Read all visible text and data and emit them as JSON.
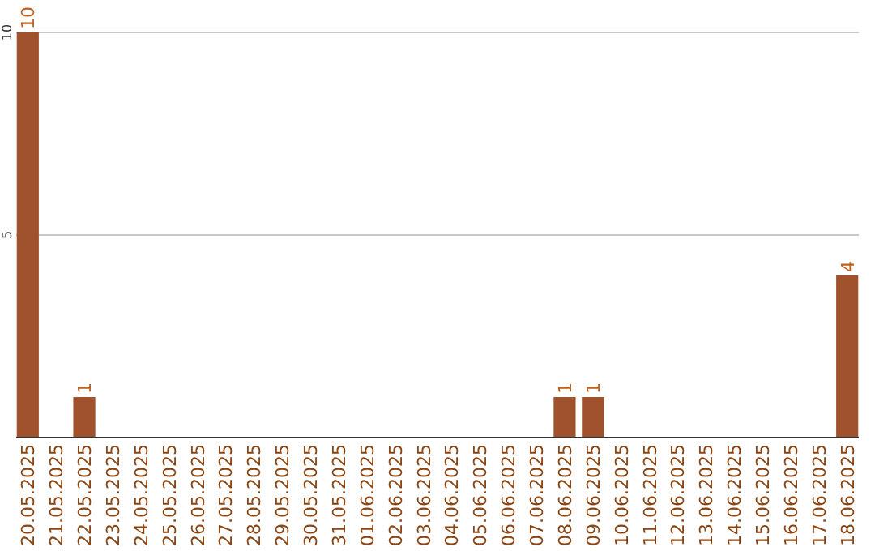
{
  "chart_data": {
    "type": "bar",
    "categories": [
      "20.05.2025",
      "21.05.2025",
      "22.05.2025",
      "23.05.2025",
      "24.05.2025",
      "25.05.2025",
      "26.05.2025",
      "27.05.2025",
      "28.05.2025",
      "29.05.2025",
      "30.05.2025",
      "31.05.2025",
      "01.06.2025",
      "02.06.2025",
      "03.06.2025",
      "04.06.2025",
      "05.06.2025",
      "06.06.2025",
      "07.06.2025",
      "08.06.2025",
      "09.06.2025",
      "10.06.2025",
      "11.06.2025",
      "12.06.2025",
      "13.06.2025",
      "14.06.2025",
      "15.06.2025",
      "16.06.2025",
      "17.06.2025",
      "18.06.2025"
    ],
    "values": [
      10,
      0,
      1,
      0,
      0,
      0,
      0,
      0,
      0,
      0,
      0,
      0,
      0,
      0,
      0,
      0,
      0,
      0,
      0,
      1,
      1,
      0,
      0,
      0,
      0,
      0,
      0,
      0,
      0,
      4
    ],
    "value_labels": [
      "10",
      null,
      "1",
      null,
      null,
      null,
      null,
      null,
      null,
      null,
      null,
      null,
      null,
      null,
      null,
      null,
      null,
      null,
      null,
      "1",
      "1",
      null,
      null,
      null,
      null,
      null,
      null,
      null,
      null,
      "4"
    ],
    "color": "#a0522d",
    "ylim": [
      0,
      10
    ],
    "yticks": [
      5,
      10
    ],
    "grid": "y"
  }
}
